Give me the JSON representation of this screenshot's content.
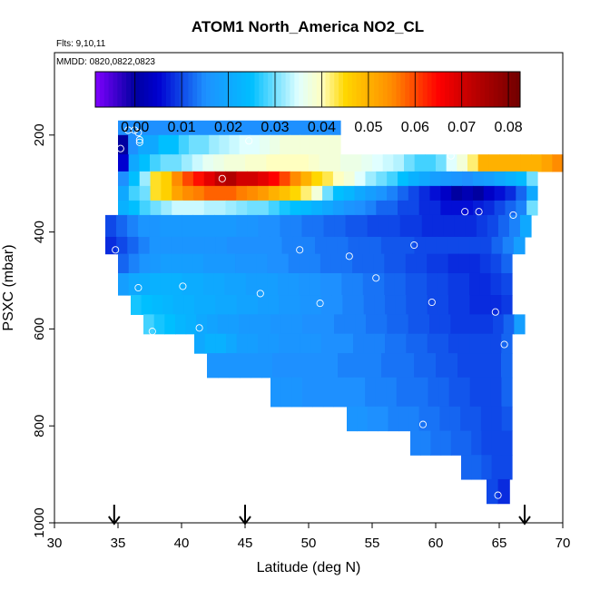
{
  "chart_data": {
    "type": "heatmap",
    "title": "ATOM1 North_America NO2_CL",
    "info_line1": "Flts: 9,10,11",
    "info_line2": "MMDD: 0820,0822,0823",
    "xlabel": "Latitude (deg N)",
    "ylabel": "PSXC (mbar)",
    "xlim": [
      30,
      70
    ],
    "ylim": [
      1000,
      30
    ],
    "x_ticks": [
      30,
      35,
      40,
      45,
      50,
      55,
      60,
      65,
      70
    ],
    "x_tick_labels": [
      "30",
      "35",
      "40",
      "45",
      "50",
      "55",
      "60",
      "65",
      "70"
    ],
    "y_ticks": [
      200,
      400,
      600,
      800,
      1000
    ],
    "y_tick_labels": [
      "200",
      "400",
      "600",
      "800",
      "1000"
    ],
    "colorbar": {
      "range": [
        -0.0085,
        0.0825
      ],
      "ticks": [
        0.0,
        0.01,
        0.02,
        0.03,
        0.04,
        0.05,
        0.06,
        0.07,
        0.08
      ],
      "tick_labels": [
        "0.00",
        "0.01",
        "0.02",
        "0.03",
        "0.04",
        "0.05",
        "0.06",
        "0.07",
        "0.08"
      ],
      "colors": [
        "#8000ff",
        "#0000a0",
        "#0000d0",
        "#1e90ff",
        "#00bfff",
        "#e0ffff",
        "#ffffc0",
        "#ffd700",
        "#ff8c00",
        "#ff0000",
        "#c00000",
        "#700000"
      ],
      "color_stops": [
        -0.0085,
        0.0,
        0.005,
        0.015,
        0.025,
        0.035,
        0.04,
        0.045,
        0.055,
        0.065,
        0.072,
        0.0825
      ]
    },
    "flight_arrows_latitude": [
      34.7,
      45.0,
      67.0
    ],
    "bins": {
      "lat_start": 34.5,
      "lat_step": 0.83,
      "rows": [
        {
          "p_top": 170,
          "p_bot": 200,
          "lat_min": 35.0,
          "lat_max": 52.5,
          "values": [
            0.015,
            0.015
          ]
        },
        {
          "p_top": 200,
          "p_bot": 240,
          "lat_min": 35.0,
          "lat_max": 52.5,
          "values": [
            0.0,
            0.015,
            0.02,
            0.02,
            0.025,
            0.025,
            0.028,
            0.03,
            0.03,
            0.032,
            0.033,
            0.034,
            0.035,
            0.035,
            0.036,
            0.037,
            0.038,
            0.038,
            0.038,
            0.038,
            0.038,
            0.038
          ]
        },
        {
          "p_top": 240,
          "p_bot": 275,
          "lat_min": 35.0,
          "lat_max": 70.0,
          "values": [
            0.005,
            0.02,
            0.025,
            0.028,
            0.03,
            0.03,
            0.032,
            0.034,
            0.036,
            0.037,
            0.038,
            0.038,
            0.039,
            0.039,
            0.04,
            0.04,
            0.04,
            0.04,
            0.039,
            0.038,
            0.038,
            0.037,
            0.037,
            0.036,
            0.035,
            0.034,
            0.033,
            0.03,
            0.028,
            0.028,
            0.03,
            0.035,
            0.038,
            0.042,
            0.05,
            0.05,
            0.05,
            0.05,
            0.05,
            0.05,
            0.052,
            0.055
          ]
        },
        {
          "p_top": 275,
          "p_bot": 305,
          "lat_min": 35.0,
          "lat_max": 68.0,
          "values": [
            0.015,
            0.025,
            0.032,
            0.044,
            0.046,
            0.055,
            0.06,
            0.064,
            0.068,
            0.072,
            0.074,
            0.07,
            0.07,
            0.068,
            0.065,
            0.06,
            0.055,
            0.05,
            0.045,
            0.043,
            0.04,
            0.038,
            0.035,
            0.032,
            0.03,
            0.028,
            0.025,
            0.022,
            0.02,
            0.018,
            0.017,
            0.016,
            0.015,
            0.017,
            0.018,
            0.02,
            0.022,
            0.024,
            0.03
          ]
        },
        {
          "p_top": 305,
          "p_bot": 335,
          "lat_min": 35.0,
          "lat_max": 68.0,
          "values": [
            0.02,
            0.028,
            0.03,
            0.044,
            0.046,
            0.052,
            0.055,
            0.056,
            0.058,
            0.058,
            0.058,
            0.056,
            0.055,
            0.053,
            0.05,
            0.048,
            0.045,
            0.042,
            0.038,
            0.03,
            0.025,
            0.023,
            0.02,
            0.018,
            0.016,
            0.014,
            0.012,
            0.01,
            0.008,
            0.006,
            0.004,
            0.0,
            0.002,
            0.0,
            0.004,
            0.006,
            0.008,
            0.012,
            0.02
          ]
        },
        {
          "p_top": 335,
          "p_bot": 365,
          "lat_min": 35.0,
          "lat_max": 68.0,
          "values": [
            0.022,
            0.025,
            0.028,
            0.03,
            0.032,
            0.034,
            0.034,
            0.034,
            0.033,
            0.033,
            0.032,
            0.031,
            0.03,
            0.03,
            0.028,
            0.026,
            0.025,
            0.024,
            0.022,
            0.02,
            0.018,
            0.016,
            0.015,
            0.014,
            0.012,
            0.012,
            0.01,
            0.01,
            0.008,
            0.008,
            0.006,
            0.006,
            0.006,
            0.007,
            0.008,
            0.01,
            0.012,
            0.014,
            0.03
          ]
        },
        {
          "p_top": 365,
          "p_bot": 410,
          "lat_min": 34.0,
          "lat_max": 67.5,
          "values": [
            0.01,
            0.012,
            0.014,
            0.016,
            0.016,
            0.017,
            0.017,
            0.017,
            0.017,
            0.017,
            0.017,
            0.017,
            0.016,
            0.016,
            0.015,
            0.015,
            0.014,
            0.014,
            0.013,
            0.013,
            0.012,
            0.012,
            0.011,
            0.011,
            0.01,
            0.01,
            0.01,
            0.009,
            0.009,
            0.008,
            0.008,
            0.008,
            0.008,
            0.008,
            0.009,
            0.01,
            0.012,
            0.014,
            0.02
          ]
        },
        {
          "p_top": 410,
          "p_bot": 445,
          "lat_min": 34.0,
          "lat_max": 67.0,
          "values": [
            0.008,
            0.01,
            0.012,
            0.014,
            0.016,
            0.016,
            0.016,
            0.016,
            0.016,
            0.016,
            0.016,
            0.015,
            0.015,
            0.015,
            0.015,
            0.015,
            0.014,
            0.014,
            0.014,
            0.013,
            0.013,
            0.013,
            0.012,
            0.012,
            0.012,
            0.011,
            0.011,
            0.011,
            0.01,
            0.01,
            0.01,
            0.01,
            0.01,
            0.01,
            0.01,
            0.012,
            0.014,
            0.018
          ]
        },
        {
          "p_top": 445,
          "p_bot": 485,
          "lat_min": 35.0,
          "lat_max": 66.0,
          "values": [
            0.012,
            0.014,
            0.016,
            0.017,
            0.018,
            0.018,
            0.018,
            0.018,
            0.017,
            0.017,
            0.017,
            0.016,
            0.016,
            0.016,
            0.015,
            0.015,
            0.014,
            0.014,
            0.014,
            0.013,
            0.013,
            0.013,
            0.012,
            0.012,
            0.012,
            0.011,
            0.011,
            0.01,
            0.01,
            0.009,
            0.009,
            0.008,
            0.008,
            0.008,
            0.009,
            0.01,
            0.012
          ]
        },
        {
          "p_top": 485,
          "p_bot": 530,
          "lat_min": 35.0,
          "lat_max": 66.0,
          "values": [
            0.018,
            0.02,
            0.021,
            0.022,
            0.022,
            0.022,
            0.021,
            0.021,
            0.02,
            0.02,
            0.019,
            0.019,
            0.018,
            0.018,
            0.018,
            0.017,
            0.017,
            0.016,
            0.016,
            0.015,
            0.015,
            0.014,
            0.014,
            0.013,
            0.013,
            0.012,
            0.012,
            0.011,
            0.011,
            0.01,
            0.01,
            0.009,
            0.009,
            0.008,
            0.008,
            0.009,
            0.01
          ]
        },
        {
          "p_top": 530,
          "p_bot": 570,
          "lat_min": 36.0,
          "lat_max": 66.0,
          "values": [
            0.026,
            0.025,
            0.024,
            0.023,
            0.022,
            0.022,
            0.021,
            0.021,
            0.02,
            0.02,
            0.019,
            0.019,
            0.018,
            0.018,
            0.017,
            0.017,
            0.016,
            0.016,
            0.015,
            0.015,
            0.014,
            0.014,
            0.013,
            0.013,
            0.012,
            0.012,
            0.011,
            0.011,
            0.01,
            0.01,
            0.009,
            0.009,
            0.008,
            0.008,
            0.008,
            0.009
          ]
        },
        {
          "p_top": 570,
          "p_bot": 610,
          "lat_min": 37.0,
          "lat_max": 67.0,
          "values": [
            0.028,
            0.026,
            0.025,
            0.023,
            0.022,
            0.02,
            0.019,
            0.018,
            0.018,
            0.017,
            0.017,
            0.017,
            0.016,
            0.016,
            0.016,
            0.015,
            0.015,
            0.015,
            0.014,
            0.014,
            0.014,
            0.013,
            0.013,
            0.012,
            0.012,
            0.011,
            0.011,
            0.01,
            0.01,
            0.009,
            0.009,
            0.009,
            0.009,
            0.01,
            0.012,
            0.018
          ]
        },
        {
          "p_top": 610,
          "p_bot": 650,
          "lat_min": 41.0,
          "lat_max": 66.0,
          "values": [
            0.02,
            0.022,
            0.022,
            0.02,
            0.018,
            0.018,
            0.017,
            0.017,
            0.016,
            0.016,
            0.016,
            0.016,
            0.015,
            0.015,
            0.015,
            0.014,
            0.014,
            0.014,
            0.013,
            0.013,
            0.012,
            0.012,
            0.011,
            0.011,
            0.01,
            0.01,
            0.01,
            0.01,
            0.01,
            0.012
          ]
        },
        {
          "p_top": 650,
          "p_bot": 700,
          "lat_min": 42.0,
          "lat_max": 66.0,
          "values": [
            0.016,
            0.016,
            0.016,
            0.016,
            0.016,
            0.016,
            0.015,
            0.015,
            0.015,
            0.015,
            0.015,
            0.015,
            0.014,
            0.014,
            0.014,
            0.014,
            0.013,
            0.013,
            0.013,
            0.012,
            0.012,
            0.011,
            0.011,
            0.01,
            0.01,
            0.01,
            0.01,
            0.012
          ]
        },
        {
          "p_top": 700,
          "p_bot": 760,
          "lat_min": 47.0,
          "lat_max": 66.0,
          "values": [
            0.016,
            0.016,
            0.016,
            0.015,
            0.015,
            0.015,
            0.015,
            0.015,
            0.015,
            0.014,
            0.014,
            0.014,
            0.013,
            0.013,
            0.013,
            0.012,
            0.012,
            0.011,
            0.011,
            0.01,
            0.01,
            0.01,
            0.012
          ]
        },
        {
          "p_top": 760,
          "p_bot": 810,
          "lat_min": 53.0,
          "lat_max": 66.0,
          "values": [
            0.016,
            0.016,
            0.015,
            0.015,
            0.014,
            0.014,
            0.014,
            0.013,
            0.013,
            0.012,
            0.012,
            0.011,
            0.011,
            0.01,
            0.01,
            0.011
          ]
        },
        {
          "p_top": 810,
          "p_bot": 860,
          "lat_min": 58.0,
          "lat_max": 66.0,
          "values": [
            0.014,
            0.014,
            0.013,
            0.013,
            0.012,
            0.012,
            0.011,
            0.01,
            0.01,
            0.01
          ]
        },
        {
          "p_top": 860,
          "p_bot": 910,
          "lat_min": 62.0,
          "lat_max": 66.0,
          "values": [
            0.012,
            0.012,
            0.011,
            0.01,
            0.01
          ]
        },
        {
          "p_top": 910,
          "p_bot": 960,
          "lat_min": 64.0,
          "lat_max": 65.8,
          "values": [
            0.01,
            0.008
          ]
        }
      ]
    },
    "observations": [
      {
        "lat": 35.8,
        "p": 190
      },
      {
        "lat": 36.3,
        "p": 190
      },
      {
        "lat": 36.6,
        "p": 195
      },
      {
        "lat": 36.7,
        "p": 210
      },
      {
        "lat": 36.7,
        "p": 215
      },
      {
        "lat": 35.2,
        "p": 228
      },
      {
        "lat": 45.3,
        "p": 212
      },
      {
        "lat": 56.8,
        "p": 228
      },
      {
        "lat": 61.2,
        "p": 243
      },
      {
        "lat": 69.8,
        "p": 225
      },
      {
        "lat": 43.2,
        "p": 290
      },
      {
        "lat": 62.3,
        "p": 358
      },
      {
        "lat": 63.4,
        "p": 358
      },
      {
        "lat": 66.1,
        "p": 365
      },
      {
        "lat": 34.8,
        "p": 437
      },
      {
        "lat": 49.3,
        "p": 437
      },
      {
        "lat": 53.2,
        "p": 450
      },
      {
        "lat": 58.3,
        "p": 427
      },
      {
        "lat": 55.3,
        "p": 495
      },
      {
        "lat": 36.6,
        "p": 515
      },
      {
        "lat": 40.1,
        "p": 512
      },
      {
        "lat": 46.2,
        "p": 527
      },
      {
        "lat": 50.9,
        "p": 547
      },
      {
        "lat": 59.7,
        "p": 545
      },
      {
        "lat": 64.7,
        "p": 565
      },
      {
        "lat": 37.7,
        "p": 605
      },
      {
        "lat": 41.4,
        "p": 598
      },
      {
        "lat": 65.4,
        "p": 632
      },
      {
        "lat": 59.0,
        "p": 797
      },
      {
        "lat": 64.9,
        "p": 943
      }
    ]
  }
}
